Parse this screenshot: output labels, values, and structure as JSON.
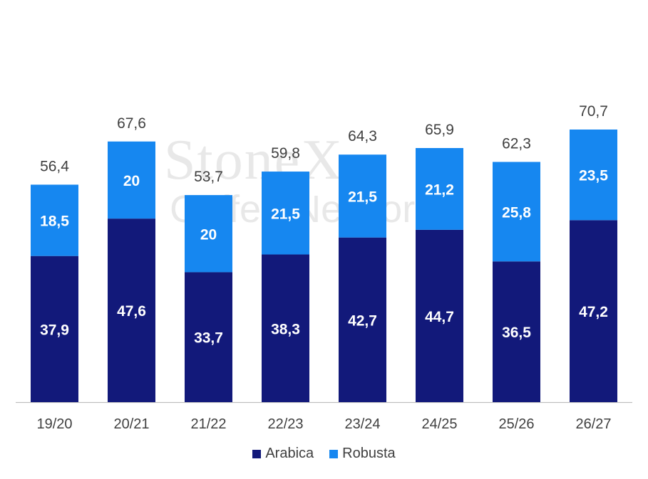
{
  "chart_data": {
    "type": "bar",
    "stacked": true,
    "title": "",
    "xlabel": "",
    "ylabel": "",
    "categories": [
      "19/20",
      "20/21",
      "21/22",
      "22/23",
      "23/24",
      "24/25",
      "25/26",
      "26/27"
    ],
    "series": [
      {
        "name": "Arabica",
        "color": "#12197a",
        "values": [
          37.9,
          47.6,
          33.7,
          38.3,
          42.7,
          44.7,
          36.5,
          47.2
        ],
        "labels": [
          "37,9",
          "47,6",
          "33,7",
          "38,3",
          "42,7",
          "44,7",
          "36,5",
          "47,2"
        ]
      },
      {
        "name": "Robusta",
        "color": "#1687f0",
        "values": [
          18.5,
          20,
          20,
          21.5,
          21.5,
          21.2,
          25.8,
          23.5
        ],
        "labels": [
          "18,5",
          "20",
          "20",
          "21,5",
          "21,5",
          "21,2",
          "25,8",
          "23,5"
        ]
      }
    ],
    "totals": [
      56.4,
      67.6,
      53.7,
      59.8,
      64.3,
      65.9,
      62.3,
      70.7
    ],
    "total_labels": [
      "56,4",
      "67,6",
      "53,7",
      "59,8",
      "64,3",
      "65,9",
      "62,3",
      "70,7"
    ],
    "ylim": [
      0,
      70.7
    ],
    "grid": false,
    "legend_position": "bottom-center"
  },
  "watermark": {
    "line1": "StoneX",
    "line2": "Coffee Network"
  }
}
